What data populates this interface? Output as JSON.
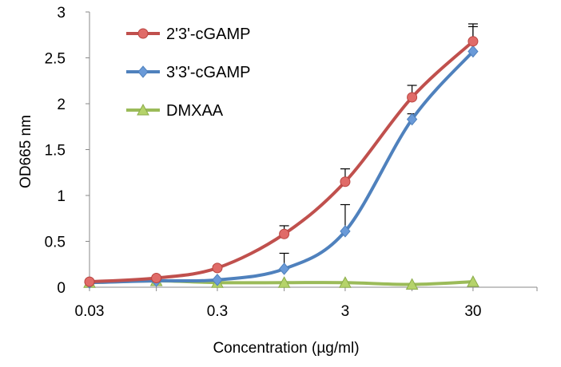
{
  "chart_data": {
    "type": "line",
    "title": "",
    "xlabel": "Concentration (µg/ml)",
    "ylabel": "OD665 nm",
    "x_scale": "log",
    "x": [
      0.03,
      0.1,
      0.3,
      1,
      3,
      10,
      30
    ],
    "xlim": [
      0.03,
      95
    ],
    "ylim": [
      0,
      3
    ],
    "x_ticks": [
      "0.03",
      "0.3",
      "3",
      "30"
    ],
    "x_tick_values": [
      0.03,
      0.3,
      3,
      30
    ],
    "y_ticks": [
      "0",
      "0.5",
      "1",
      "1.5",
      "2",
      "2.5",
      "3"
    ],
    "y_tick_values": [
      0,
      0.5,
      1,
      1.5,
      2,
      2.5,
      3
    ],
    "grid": false,
    "legend_position": "top-left",
    "series": [
      {
        "name": "2'3'-cGAMP",
        "color": "#c0504d",
        "marker": "circle",
        "values": [
          0.06,
          0.1,
          0.21,
          0.58,
          1.15,
          2.07,
          2.68
        ],
        "errors": [
          0.0,
          0.0,
          0.02,
          0.09,
          0.14,
          0.13,
          0.19
        ]
      },
      {
        "name": "3'3'-cGAMP",
        "color": "#4f81bd",
        "marker": "diamond",
        "values": [
          0.05,
          0.07,
          0.08,
          0.2,
          0.61,
          1.83,
          2.57
        ],
        "errors": [
          0.0,
          0.0,
          0.0,
          0.17,
          0.29,
          0.06,
          0.27
        ]
      },
      {
        "name": "DMXAA",
        "color": "#9bbb59",
        "marker": "triangle",
        "values": [
          0.05,
          0.07,
          0.05,
          0.05,
          0.05,
          0.03,
          0.06
        ],
        "errors": [
          0,
          0,
          0,
          0,
          0,
          0,
          0
        ]
      }
    ]
  }
}
